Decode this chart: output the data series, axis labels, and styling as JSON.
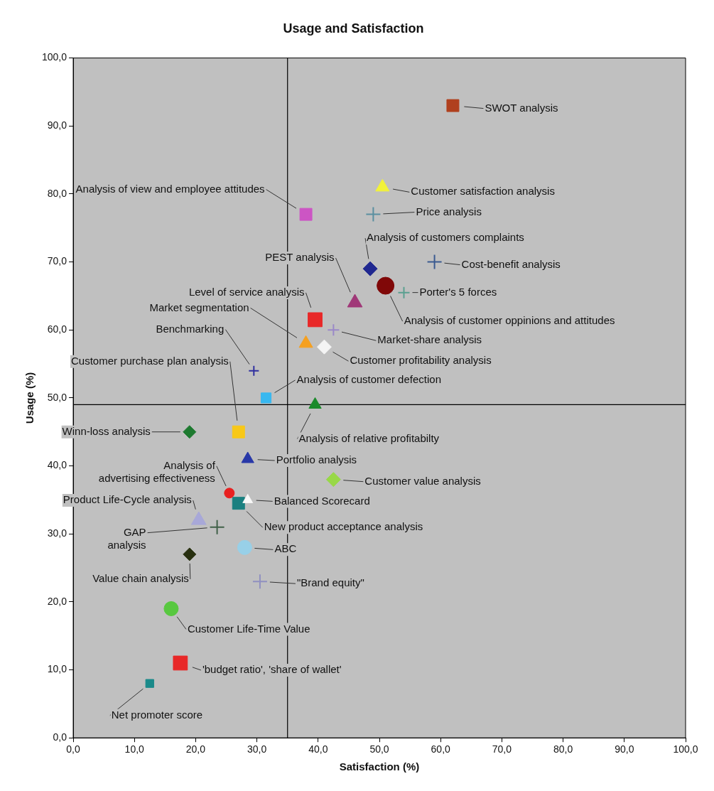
{
  "chart_data": {
    "type": "scatter",
    "title": "Usage and Satisfaction",
    "xlabel": "Satisfaction (%)",
    "ylabel": "Usage (%)",
    "xlim": [
      0,
      100
    ],
    "ylim": [
      0,
      100
    ],
    "xticks": [
      {
        "value": 0,
        "label": "0,0"
      },
      {
        "value": 10,
        "label": "10,0"
      },
      {
        "value": 20,
        "label": "20,0"
      },
      {
        "value": 30,
        "label": "30,0"
      },
      {
        "value": 40,
        "label": "40,0"
      },
      {
        "value": 50,
        "label": "50,0"
      },
      {
        "value": 60,
        "label": "60,0"
      },
      {
        "value": 70,
        "label": "70,0"
      },
      {
        "value": 80,
        "label": "80,0"
      },
      {
        "value": 90,
        "label": "90,0"
      },
      {
        "value": 100,
        "label": "100,0"
      }
    ],
    "yticks": [
      {
        "value": 0,
        "label": "0,0"
      },
      {
        "value": 10,
        "label": "10,0"
      },
      {
        "value": 20,
        "label": "20,0"
      },
      {
        "value": 30,
        "label": "30,0"
      },
      {
        "value": 40,
        "label": "40,0"
      },
      {
        "value": 50,
        "label": "50,0"
      },
      {
        "value": 60,
        "label": "60,0"
      },
      {
        "value": 70,
        "label": "70,0"
      },
      {
        "value": 80,
        "label": "80,0"
      },
      {
        "value": 90,
        "label": "90,0"
      },
      {
        "value": 100,
        "label": "100,0"
      }
    ],
    "grid": false,
    "legend": false,
    "ref_lines": [
      {
        "axis": "x",
        "value": 35,
        "color": "#000000"
      },
      {
        "axis": "y",
        "value": 49,
        "color": "#000000"
      }
    ],
    "series": [
      {
        "name": "SWOT analysis",
        "color": "#b0401e",
        "marker": "square",
        "x": [
          62
        ],
        "values": [
          93
        ]
      },
      {
        "name": "Customer satisfaction analysis",
        "color": "#f2f23a",
        "marker": "triangle",
        "x": [
          50.5
        ],
        "values": [
          81
        ]
      },
      {
        "name": "Analysis of view and employee attitudes",
        "color": "#cc55c4",
        "marker": "square",
        "x": [
          38
        ],
        "values": [
          77
        ]
      },
      {
        "name": "Price analysis",
        "color": "#5a8fa0",
        "marker": "cross",
        "x": [
          49
        ],
        "values": [
          77
        ]
      },
      {
        "name": "Analysis of customers complaints",
        "color": "#202890",
        "marker": "diamond",
        "x": [
          48.5
        ],
        "values": [
          69
        ]
      },
      {
        "name": "Cost-benefit analysis",
        "color": "#3a5a90",
        "marker": "cross",
        "x": [
          59
        ],
        "values": [
          70
        ]
      },
      {
        "name": "PEST analysis",
        "color": "#a03878",
        "marker": "triangle",
        "x": [
          46
        ],
        "values": [
          64
        ]
      },
      {
        "name": "Porter's 5 forces",
        "color": "#5aa090",
        "marker": "cross",
        "x": [
          54
        ],
        "values": [
          65.5
        ]
      },
      {
        "name": "Analysis of customer oppinions and attitudes",
        "color": "#800808",
        "marker": "circle",
        "x": [
          51
        ],
        "values": [
          66.5
        ]
      },
      {
        "name": "Level of service analysis",
        "color": "#e82828",
        "marker": "square",
        "x": [
          39.5
        ],
        "values": [
          61.5
        ]
      },
      {
        "name": "Market-share analysis",
        "color": "#9a88c8",
        "marker": "cross",
        "x": [
          42.5
        ],
        "values": [
          60
        ]
      },
      {
        "name": "Market segmentation",
        "color": "#f5a020",
        "marker": "triangle",
        "x": [
          38
        ],
        "values": [
          58
        ]
      },
      {
        "name": "Benchmarking",
        "color": "#3030a0",
        "marker": "cross",
        "x": [
          29.5
        ],
        "values": [
          54
        ]
      },
      {
        "name": "Customer profitability analysis",
        "color": "#f4f4f4",
        "marker": "diamond",
        "x": [
          41
        ],
        "values": [
          57.5
        ]
      },
      {
        "name": "Analysis of customer defection",
        "color": "#38b8f0",
        "marker": "square",
        "x": [
          31.5
        ],
        "values": [
          50
        ]
      },
      {
        "name": "Customer purchase plan analysis",
        "color": "#f8c818",
        "marker": "square",
        "x": [
          27
        ],
        "values": [
          45
        ]
      },
      {
        "name": "Winn-loss analysis",
        "color": "#1e7a30",
        "marker": "diamond",
        "x": [
          19
        ],
        "values": [
          45
        ]
      },
      {
        "name": "Analysis of relative profitabilty",
        "color": "#1a8a2a",
        "marker": "triangle",
        "x": [
          39.5
        ],
        "values": [
          49
        ]
      },
      {
        "name": "Portfolio analysis",
        "color": "#2838a8",
        "marker": "triangle",
        "x": [
          28.5
        ],
        "values": [
          41
        ]
      },
      {
        "name": "Customer value analysis",
        "color": "#98d848",
        "marker": "diamond",
        "x": [
          42.5
        ],
        "values": [
          38
        ]
      },
      {
        "name": "Analysis of advertising effectiveness",
        "color": "#e82020",
        "marker": "circle",
        "x": [
          25.5
        ],
        "values": [
          36
        ]
      },
      {
        "name": "Balanced Scorecard",
        "color": "#f8f8f8",
        "marker": "triangle",
        "x": [
          28.5
        ],
        "values": [
          35
        ]
      },
      {
        "name": "New product acceptance analysis",
        "color": "#1a8080",
        "marker": "square",
        "x": [
          27
        ],
        "values": [
          34.5
        ]
      },
      {
        "name": "Product Life-Cycle analysis",
        "color": "#a8a8d8",
        "marker": "triangle",
        "x": [
          20.5
        ],
        "values": [
          32
        ]
      },
      {
        "name": "GAP analysis",
        "color": "#406048",
        "marker": "cross",
        "x": [
          23.5
        ],
        "values": [
          31
        ]
      },
      {
        "name": "ABC",
        "color": "#98d0e8",
        "marker": "circle",
        "x": [
          28
        ],
        "values": [
          28
        ]
      },
      {
        "name": "Value chain analysis",
        "color": "#283010",
        "marker": "diamond",
        "x": [
          19
        ],
        "values": [
          27
        ]
      },
      {
        "name": "\"Brand equity\"",
        "color": "#9090c0",
        "marker": "cross",
        "x": [
          30.5
        ],
        "values": [
          23
        ]
      },
      {
        "name": "Customer Life-Time Value",
        "color": "#58c840",
        "marker": "circle",
        "x": [
          16
        ],
        "values": [
          19
        ]
      },
      {
        "name": "'budget ratio', 'share of wallet'",
        "color": "#e82828",
        "marker": "square",
        "x": [
          17.5
        ],
        "values": [
          11
        ]
      },
      {
        "name": "Net promoter score",
        "color": "#1a8a8a",
        "marker": "square",
        "x": [
          12.5
        ],
        "values": [
          8
        ]
      }
    ]
  }
}
